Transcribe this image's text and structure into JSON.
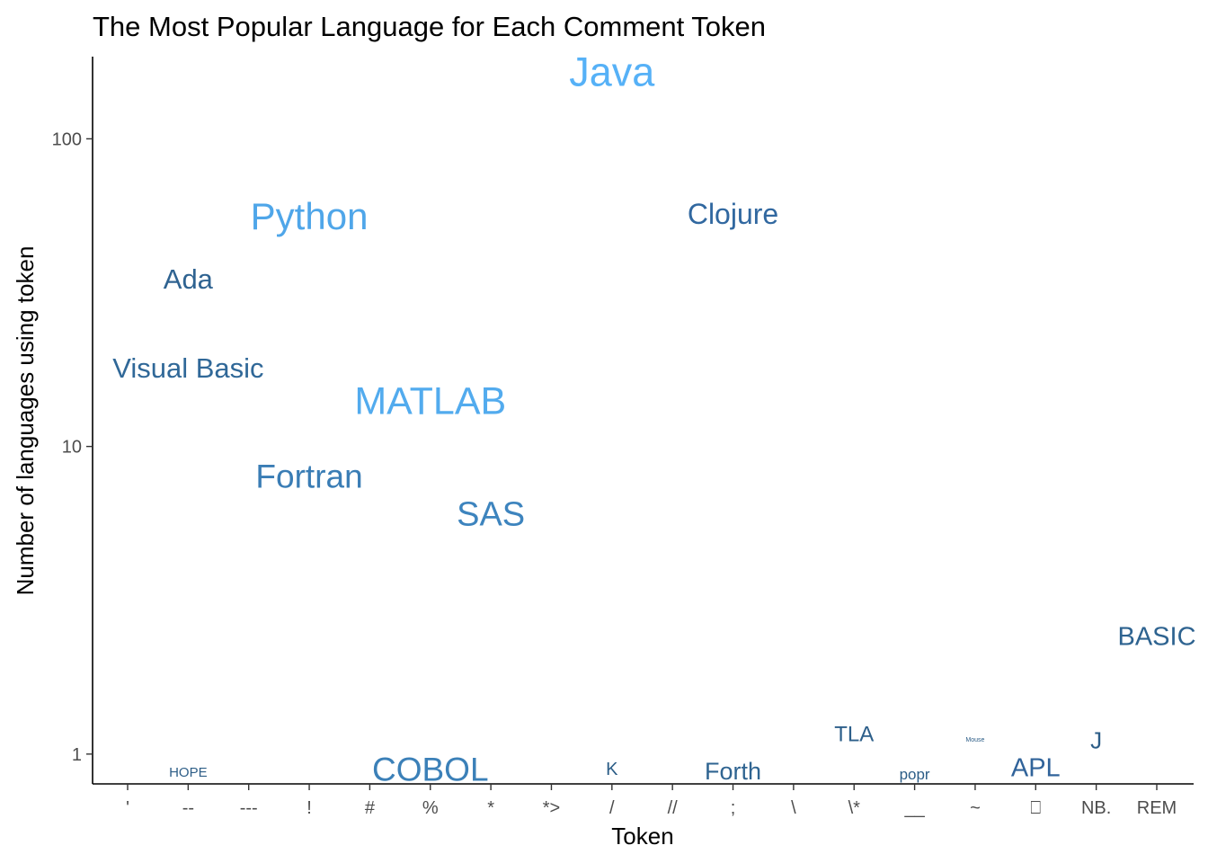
{
  "chart_data": {
    "type": "scatter",
    "title": "The Most Popular Language for Each Comment Token",
    "xlabel": "Token",
    "ylabel": "Number of languages using token",
    "y_scale": "log10",
    "ylim": [
      0.8,
      185
    ],
    "y_ticks": [
      {
        "value": 1,
        "label": "1"
      },
      {
        "value": 10,
        "label": "10"
      },
      {
        "value": 100,
        "label": "100"
      }
    ],
    "categories": [
      "'",
      "--",
      "---",
      "!",
      "#",
      "%",
      "*",
      "*>",
      "/",
      "//",
      ";",
      "\\",
      "\\*",
      "__",
      "~",
      "⎕",
      "NB.",
      "REM"
    ],
    "grid": false,
    "legend": "none",
    "color_scale": [
      "#2c5d87",
      "#56b1f7"
    ],
    "points": [
      {
        "label": "HOPE",
        "x": "--",
        "y": 0.87,
        "size": 15,
        "color": "#2e5e87"
      },
      {
        "label": "Ada",
        "x": "--",
        "y": 35,
        "size": 31,
        "color": "#2f6391"
      },
      {
        "label": "Visual Basic",
        "x": "--",
        "y": 18,
        "size": 31,
        "color": "#306898"
      },
      {
        "label": "Python",
        "x": "!",
        "y": 56,
        "size": 42,
        "color": "#4fa6e9"
      },
      {
        "label": "Fortran",
        "x": "!",
        "y": 8,
        "size": 37,
        "color": "#3a7db5"
      },
      {
        "label": "MATLAB",
        "x": "%",
        "y": 14,
        "size": 43,
        "color": "#52abee"
      },
      {
        "label": "COBOL",
        "x": "%",
        "y": 0.89,
        "size": 37,
        "color": "#3b80b8"
      },
      {
        "label": "SAS",
        "x": "*",
        "y": 6,
        "size": 38,
        "color": "#3d84be"
      },
      {
        "label": "K",
        "x": "/",
        "y": 0.89,
        "size": 20,
        "color": "#2c5d87"
      },
      {
        "label": "Java",
        "x": "/",
        "y": 165,
        "size": 45,
        "color": "#56b1f7"
      },
      {
        "label": "Clojure",
        "x": ";",
        "y": 57,
        "size": 32,
        "color": "#3168a0"
      },
      {
        "label": "Forth",
        "x": ";",
        "y": 0.88,
        "size": 27,
        "color": "#2f6491"
      },
      {
        "label": "TLA",
        "x": "\\*",
        "y": 1.16,
        "size": 24,
        "color": "#2d5f8a"
      },
      {
        "label": "popr",
        "x": "__",
        "y": 0.86,
        "size": 17,
        "color": "#2c5d87"
      },
      {
        "label": "Mouse",
        "x": "~",
        "y": 1.11,
        "size": 7,
        "color": "#2c5d87"
      },
      {
        "label": "APL",
        "x": "⎕",
        "y": 0.9,
        "size": 29,
        "color": "#30639a"
      },
      {
        "label": "J",
        "x": "NB.",
        "y": 1.11,
        "size": 26,
        "color": "#2c5d87"
      },
      {
        "label": "BASIC",
        "x": "REM",
        "y": 2.4,
        "size": 29,
        "color": "#2e6390"
      }
    ]
  }
}
